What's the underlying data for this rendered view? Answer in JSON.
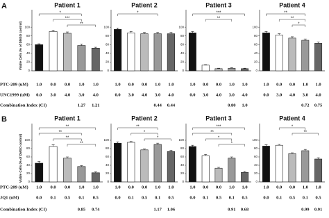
{
  "panels": [
    {
      "label": "A",
      "row_labels": [
        "PTC-209 (uM)",
        "UNC1999 (uM)",
        "Combination Index (CI)"
      ]
    },
    {
      "label": "B",
      "row_labels": [
        "PTC-209 (uM)",
        "JQ1 (uM)",
        "Combination Index (CI)"
      ]
    }
  ],
  "chart_data": [
    {
      "type": "bar",
      "title": "Patient 1",
      "ylabel": "Viable Cells (% of DMSO control)",
      "values": [
        60,
        90,
        86,
        58,
        52
      ],
      "errors": [
        2,
        3,
        3,
        3,
        2
      ],
      "colors": [
        "#111111",
        "#ffffff",
        "#bbbbbb",
        "#999999",
        "#666666"
      ],
      "ylim": [
        0,
        140
      ],
      "yticks": [
        0,
        20,
        40,
        60,
        80,
        100
      ],
      "drug1": [
        "1.0",
        "0.0",
        "0.0",
        "1.0",
        "1.0"
      ],
      "drug2": [
        "0.0",
        "3.0",
        "4.0",
        "3.0",
        "4.0"
      ],
      "ci": [
        "1.27",
        "1.21"
      ],
      "brackets": [
        {
          "label": "*",
          "from": 0,
          "to": 3
        },
        {
          "label": "***",
          "from": 1,
          "to": 3
        },
        {
          "label": "**",
          "from": 2,
          "to": 4
        }
      ]
    },
    {
      "type": "bar",
      "title": "Patient 2",
      "values": [
        95,
        87,
        85,
        85,
        85
      ],
      "errors": [
        3,
        3,
        3,
        3,
        3
      ],
      "colors": [
        "#111111",
        "#ffffff",
        "#bbbbbb",
        "#999999",
        "#666666"
      ],
      "ylim": [
        0,
        140
      ],
      "yticks": [
        0,
        20,
        40,
        60,
        80,
        100
      ],
      "drug1": [
        "1.0",
        "0.0",
        "0.0",
        "1.0",
        "1.0"
      ],
      "drug2": [
        "0.0",
        "3.0",
        "4.0",
        "3.0",
        "4.0"
      ],
      "ci": [
        "0.44",
        "0.44"
      ],
      "brackets": [
        {
          "label": "*",
          "from": 0,
          "to": 3
        }
      ]
    },
    {
      "type": "bar",
      "title": "Patient 3",
      "values": [
        87,
        13,
        5,
        6,
        5
      ],
      "errors": [
        3,
        1,
        1,
        1,
        1
      ],
      "colors": [
        "#111111",
        "#ffffff",
        "#bbbbbb",
        "#999999",
        "#666666"
      ],
      "ylim": [
        0,
        140
      ],
      "yticks": [
        0,
        20,
        40,
        60,
        80,
        100
      ],
      "drug1": [
        "1.0",
        "0.0",
        "0.0",
        "1.0",
        "1.0"
      ],
      "drug2": [
        "0.0",
        "3.0",
        "4.0",
        "3.0",
        "4.0"
      ],
      "ci": [
        "0.80",
        "1.0"
      ],
      "brackets": [
        {
          "label": "***",
          "from": 0,
          "to": 4
        },
        {
          "label": "**",
          "from": 1,
          "to": 3
        }
      ]
    },
    {
      "type": "bar",
      "title": "Patient 4",
      "values": [
        87,
        82,
        75,
        70,
        63
      ],
      "errors": [
        3,
        3,
        3,
        3,
        3
      ],
      "colors": [
        "#111111",
        "#ffffff",
        "#bbbbbb",
        "#999999",
        "#666666"
      ],
      "ylim": [
        0,
        140
      ],
      "yticks": [
        0,
        20,
        40,
        60,
        80,
        100
      ],
      "drug1": [
        "1.0",
        "0.0",
        "0.0",
        "1.0",
        "1.0"
      ],
      "drug2": [
        "0.0",
        "3.0",
        "4.0",
        "3.0",
        "4.0"
      ],
      "ci": [
        "0.72",
        "0.75"
      ],
      "brackets": [
        {
          "label": "**",
          "from": 0,
          "to": 3
        },
        {
          "label": "**",
          "from": 1,
          "to": 3
        },
        {
          "label": "*",
          "from": 2,
          "to": 3
        }
      ]
    },
    {
      "type": "bar",
      "title": "Patient 1",
      "ylabel": "Viable Cells (% of DMSO control)",
      "values": [
        45,
        85,
        57,
        37,
        22
      ],
      "errors": [
        4,
        4,
        3,
        2,
        2
      ],
      "colors": [
        "#111111",
        "#ffffff",
        "#bbbbbb",
        "#999999",
        "#666666"
      ],
      "ylim": [
        0,
        140
      ],
      "yticks": [
        0,
        20,
        40,
        60,
        80,
        100
      ],
      "drug1": [
        "1.0",
        "0.0",
        "0.0",
        "1.0",
        "1.0"
      ],
      "drug2": [
        "0.0",
        "0.1",
        "0.5",
        "0.1",
        "0.5"
      ],
      "ci": [
        "0.85",
        "0.74"
      ],
      "brackets": [
        {
          "label": "**",
          "from": 0,
          "to": 4
        },
        {
          "label": "**",
          "from": 0,
          "to": 3
        },
        {
          "label": "**",
          "from": 1,
          "to": 3
        },
        {
          "label": "**",
          "from": 2,
          "to": 4
        }
      ]
    },
    {
      "type": "bar",
      "title": "Patient 2",
      "values": [
        93,
        95,
        77,
        90,
        73
      ],
      "errors": [
        3,
        2,
        2,
        3,
        3
      ],
      "colors": [
        "#111111",
        "#ffffff",
        "#bbbbbb",
        "#999999",
        "#666666"
      ],
      "ylim": [
        0,
        140
      ],
      "yticks": [
        0,
        20,
        40,
        60,
        80,
        100
      ],
      "drug1": [
        "1.0",
        "0.0",
        "0.0",
        "1.0",
        "1.0"
      ],
      "drug2": [
        "0.0",
        "0.1",
        "0.5",
        "0.1",
        "0.5"
      ],
      "ci": [
        "1.17",
        "1.06"
      ],
      "brackets": [
        {
          "label": "**",
          "from": 0,
          "to": 3
        },
        {
          "label": "*",
          "from": 1,
          "to": 3
        },
        {
          "label": "*",
          "from": 2,
          "to": 4
        }
      ]
    },
    {
      "type": "bar",
      "title": "Patient 3",
      "values": [
        85,
        63,
        33,
        57,
        23
      ],
      "errors": [
        3,
        3,
        2,
        3,
        2
      ],
      "colors": [
        "#111111",
        "#ffffff",
        "#bbbbbb",
        "#999999",
        "#666666"
      ],
      "ylim": [
        0,
        140
      ],
      "yticks": [
        0,
        20,
        40,
        60,
        80,
        100
      ],
      "drug1": [
        "1.0",
        "0.0",
        "0.0",
        "1.0",
        "1.0"
      ],
      "drug2": [
        "0.0",
        "0.1",
        "0.5",
        "0.1",
        "0.5"
      ],
      "ci": [
        "0.91",
        "0.68"
      ],
      "brackets": [
        {
          "label": "***",
          "from": 0,
          "to": 4
        },
        {
          "label": "**",
          "from": 0,
          "to": 3
        },
        {
          "label": "*",
          "from": 1,
          "to": 3
        },
        {
          "label": "*",
          "from": 2,
          "to": 4
        }
      ]
    },
    {
      "type": "bar",
      "title": "Patient 4",
      "values": [
        86,
        88,
        68,
        75,
        55
      ],
      "errors": [
        3,
        2,
        2,
        3,
        3
      ],
      "colors": [
        "#111111",
        "#ffffff",
        "#bbbbbb",
        "#999999",
        "#666666"
      ],
      "ylim": [
        0,
        140
      ],
      "yticks": [
        0,
        20,
        40,
        60,
        80,
        100
      ],
      "drug1": [
        "1.0",
        "0.0",
        "0.0",
        "1.0",
        "1.0"
      ],
      "drug2": [
        "0.0",
        "0.1",
        "0.5",
        "0.1",
        "0.5"
      ],
      "ci": [
        "0.99",
        "0.91"
      ],
      "brackets": [
        {
          "label": "*",
          "from": 1,
          "to": 3
        },
        {
          "label": "**",
          "from": 2,
          "to": 4
        }
      ]
    }
  ]
}
